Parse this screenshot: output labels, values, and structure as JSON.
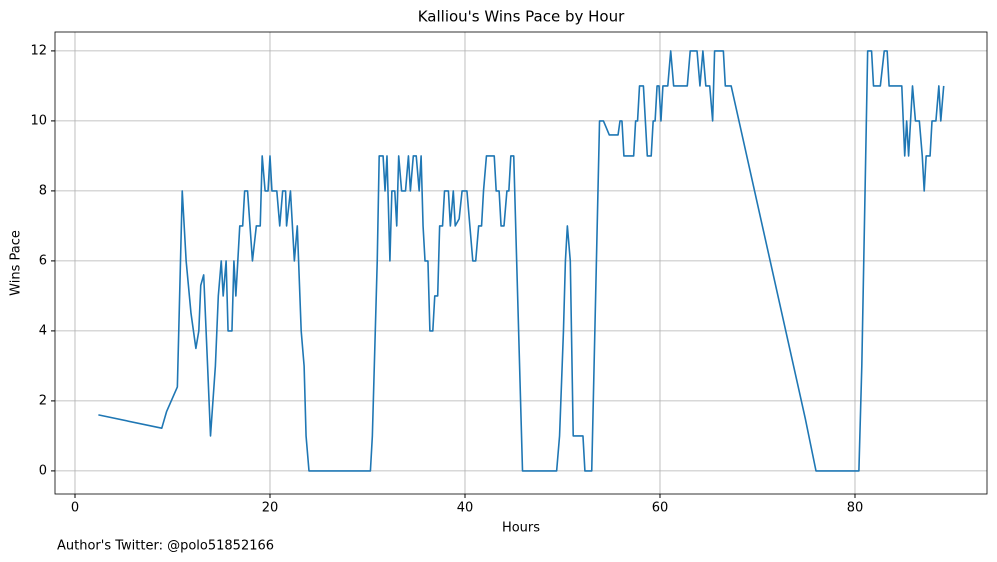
{
  "chart_data": {
    "type": "line",
    "title": "Kalliou's Wins Pace by Hour",
    "xlabel": "Hours",
    "ylabel": "Wins Pace",
    "annotation": "Author's Twitter: @polo51852166",
    "xlim": [
      -2.05,
      93.54
    ],
    "ylim": [
      -0.66,
      12.54
    ],
    "xticks": [
      0,
      20,
      40,
      60,
      80
    ],
    "yticks": [
      0,
      2,
      4,
      6,
      8,
      10,
      12
    ],
    "grid": true,
    "series": [
      {
        "color": "#1f77b4",
        "x": [
          2.4,
          8.9,
          9.4,
          10.5,
          11,
          11.4,
          11.9,
          12.4,
          12.7,
          12.9,
          13.2,
          13.6,
          13.9,
          14.4,
          14.7,
          15,
          15.2,
          15.5,
          15.7,
          16.1,
          16.3,
          16.5,
          16.9,
          17.2,
          17.4,
          17.7,
          18.2,
          18.6,
          19,
          19.2,
          19.5,
          19.8,
          20,
          20.2,
          20.7,
          21,
          21.3,
          21.6,
          21.7,
          22.1,
          22.5,
          22.8,
          23.2,
          23.5,
          23.7,
          24,
          30.3,
          30.5,
          30.8,
          31,
          31.2,
          31.6,
          31.8,
          32,
          32.3,
          32.5,
          32.8,
          33,
          33.2,
          33.5,
          33.9,
          34.2,
          34.4,
          34.7,
          35,
          35.3,
          35.5,
          35.7,
          35.9,
          36.2,
          36.4,
          36.7,
          36.9,
          37.2,
          37.4,
          37.7,
          37.9,
          38.3,
          38.5,
          38.8,
          39,
          39.4,
          39.7,
          40.2,
          40.5,
          40.8,
          41.1,
          41.4,
          41.7,
          41.9,
          42.2,
          43,
          43.2,
          43.5,
          43.7,
          44,
          44.3,
          44.5,
          44.7,
          45,
          45.3,
          45.6,
          45.9,
          49.4,
          49.7,
          50.1,
          50.3,
          50.5,
          50.8,
          51.1,
          52.1,
          52.3,
          53,
          53.4,
          53.8,
          54.2,
          54.8,
          55.7,
          55.9,
          56.1,
          56.3,
          57.3,
          57.5,
          57.7,
          57.9,
          58.3,
          58.5,
          58.7,
          59.1,
          59.3,
          59.5,
          59.7,
          59.9,
          60.1,
          60.3,
          60.8,
          61.1,
          61.4,
          62.8,
          63.1,
          63.8,
          64.1,
          64.4,
          64.7,
          65.1,
          65.4,
          65.6,
          66.5,
          66.7,
          67.3,
          74.9,
          76,
          80.4,
          80.7,
          81.1,
          81.3,
          81.7,
          81.9,
          82.6,
          83,
          83.3,
          83.5,
          84.8,
          85.1,
          85.3,
          85.5,
          85.9,
          86.2,
          86.6,
          86.9,
          87.1,
          87.3,
          87.7,
          87.9,
          88.3,
          88.6,
          88.8,
          89.1
        ],
        "values": [
          1.6,
          1.22,
          1.7,
          2.4,
          8,
          6,
          4.5,
          3.5,
          4,
          5.3,
          5.6,
          3,
          1,
          3,
          5,
          6,
          5,
          6,
          4,
          4,
          6,
          5,
          7,
          7,
          8,
          8,
          6,
          7,
          7,
          9,
          8,
          8,
          9,
          8,
          8,
          7,
          8,
          8,
          7,
          8,
          6,
          7,
          4,
          3,
          1,
          0,
          0,
          1,
          4,
          6,
          9,
          9,
          8,
          9,
          6,
          8,
          8,
          7,
          9,
          8,
          8,
          9,
          8,
          9,
          9,
          8,
          9,
          7,
          6,
          6,
          4,
          4,
          5,
          5,
          7,
          7,
          8,
          8,
          7,
          8,
          7,
          7.2,
          8,
          8,
          7,
          6,
          6,
          7,
          7,
          8,
          9,
          9,
          8,
          8,
          7,
          7,
          8,
          8,
          9,
          9,
          6,
          3,
          0,
          0,
          1,
          4,
          6,
          7,
          6,
          1,
          1,
          0,
          0,
          5,
          10,
          10,
          9.6,
          9.6,
          10,
          10,
          9,
          9,
          10,
          10,
          11,
          11,
          10,
          9,
          9,
          10,
          10,
          11,
          11,
          10,
          11,
          11,
          12,
          11,
          11,
          12,
          12,
          11,
          12,
          11,
          11,
          10,
          12,
          12,
          11,
          11,
          1.5,
          0,
          0,
          3,
          9,
          12,
          12,
          11,
          11,
          12,
          12,
          11,
          11,
          9,
          10,
          9,
          11,
          10,
          10,
          9,
          8,
          9,
          9,
          10,
          10,
          11,
          10,
          11
        ]
      }
    ]
  }
}
